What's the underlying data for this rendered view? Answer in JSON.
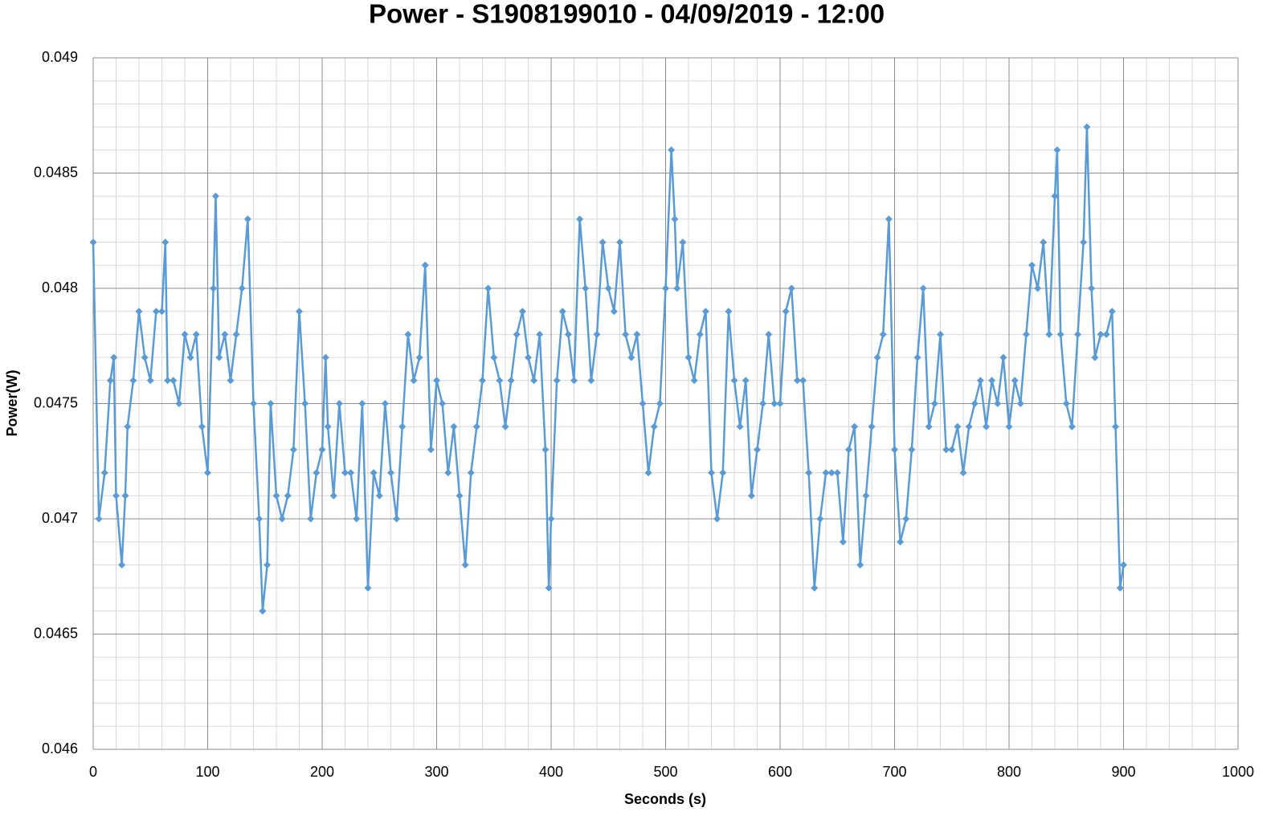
{
  "chart_data": {
    "type": "line",
    "title": "Power - S1908199010 - 04/09/2019 - 12:00",
    "x_label": "Seconds (s)",
    "y_label": "Power(W)",
    "color": "#5b9bd5",
    "marker": "diamond",
    "grid": true,
    "xlim": [
      0,
      1000
    ],
    "xticks": [
      0,
      100,
      200,
      300,
      400,
      500,
      600,
      700,
      800,
      900,
      1000
    ],
    "ylim": [
      0.046,
      0.049
    ],
    "yticks": [
      0.046,
      0.0465,
      0.047,
      0.0475,
      0.048,
      0.0485,
      0.049
    ],
    "x": [
      0,
      5,
      10,
      15,
      18,
      20,
      25,
      28,
      30,
      35,
      40,
      45,
      50,
      55,
      60,
      63,
      65,
      70,
      75,
      80,
      85,
      90,
      95,
      100,
      105,
      107,
      110,
      115,
      120,
      125,
      130,
      135,
      140,
      145,
      148,
      152,
      155,
      160,
      165,
      170,
      175,
      180,
      185,
      190,
      195,
      200,
      203,
      205,
      210,
      215,
      220,
      225,
      230,
      235,
      240,
      245,
      250,
      255,
      260,
      265,
      270,
      275,
      280,
      285,
      290,
      295,
      300,
      305,
      310,
      315,
      320,
      325,
      330,
      335,
      340,
      345,
      350,
      355,
      360,
      365,
      370,
      375,
      380,
      385,
      390,
      395,
      398,
      400,
      405,
      410,
      415,
      420,
      425,
      430,
      435,
      440,
      445,
      450,
      455,
      460,
      465,
      470,
      475,
      480,
      485,
      490,
      495,
      500,
      505,
      508,
      510,
      515,
      520,
      525,
      530,
      535,
      540,
      545,
      550,
      555,
      560,
      565,
      570,
      575,
      580,
      585,
      590,
      595,
      600,
      605,
      610,
      615,
      620,
      625,
      630,
      635,
      640,
      645,
      650,
      655,
      660,
      665,
      670,
      675,
      680,
      685,
      690,
      695,
      700,
      705,
      710,
      715,
      720,
      725,
      730,
      735,
      740,
      745,
      750,
      755,
      760,
      765,
      770,
      775,
      780,
      785,
      790,
      795,
      800,
      805,
      810,
      815,
      820,
      825,
      830,
      835,
      840,
      842,
      845,
      850,
      855,
      860,
      865,
      868,
      872,
      875,
      880,
      885,
      890,
      893,
      897,
      900
    ],
    "values": [
      0.0482,
      0.047,
      0.0472,
      0.0476,
      0.0477,
      0.0471,
      0.0468,
      0.0471,
      0.0474,
      0.0476,
      0.0479,
      0.0477,
      0.0476,
      0.0479,
      0.0479,
      0.0482,
      0.0476,
      0.0476,
      0.0475,
      0.0478,
      0.0477,
      0.0478,
      0.0474,
      0.0472,
      0.048,
      0.0484,
      0.0477,
      0.0478,
      0.0476,
      0.0478,
      0.048,
      0.0483,
      0.0475,
      0.047,
      0.0466,
      0.0468,
      0.0475,
      0.0471,
      0.047,
      0.0471,
      0.0473,
      0.0479,
      0.0475,
      0.047,
      0.0472,
      0.0473,
      0.0477,
      0.0474,
      0.0471,
      0.0475,
      0.0472,
      0.0472,
      0.047,
      0.0475,
      0.0467,
      0.0472,
      0.0471,
      0.0475,
      0.0472,
      0.047,
      0.0474,
      0.0478,
      0.0476,
      0.0477,
      0.0481,
      0.0473,
      0.0476,
      0.0475,
      0.0472,
      0.0474,
      0.0471,
      0.0468,
      0.0472,
      0.0474,
      0.0476,
      0.048,
      0.0477,
      0.0476,
      0.0474,
      0.0476,
      0.0478,
      0.0479,
      0.0477,
      0.0476,
      0.0478,
      0.0473,
      0.0467,
      0.047,
      0.0476,
      0.0479,
      0.0478,
      0.0476,
      0.0483,
      0.048,
      0.0476,
      0.0478,
      0.0482,
      0.048,
      0.0479,
      0.0482,
      0.0478,
      0.0477,
      0.0478,
      0.0475,
      0.0472,
      0.0474,
      0.0475,
      0.048,
      0.0486,
      0.0483,
      0.048,
      0.0482,
      0.0477,
      0.0476,
      0.0478,
      0.0479,
      0.0472,
      0.047,
      0.0472,
      0.0479,
      0.0476,
      0.0474,
      0.0476,
      0.0471,
      0.0473,
      0.0475,
      0.0478,
      0.0475,
      0.0475,
      0.0479,
      0.048,
      0.0476,
      0.0476,
      0.0472,
      0.0467,
      0.047,
      0.0472,
      0.0472,
      0.0472,
      0.0469,
      0.0473,
      0.0474,
      0.0468,
      0.0471,
      0.0474,
      0.0477,
      0.0478,
      0.0483,
      0.0473,
      0.0469,
      0.047,
      0.0473,
      0.0477,
      0.048,
      0.0474,
      0.0475,
      0.0478,
      0.0473,
      0.0473,
      0.0474,
      0.0472,
      0.0474,
      0.0475,
      0.0476,
      0.0474,
      0.0476,
      0.0475,
      0.0477,
      0.0474,
      0.0476,
      0.0475,
      0.0478,
      0.0481,
      0.048,
      0.0482,
      0.0478,
      0.0484,
      0.0486,
      0.0478,
      0.0475,
      0.0474,
      0.0478,
      0.0482,
      0.0487,
      0.048,
      0.0477,
      0.0478,
      0.0478,
      0.0479,
      0.0474,
      0.0467,
      0.0468
    ]
  }
}
